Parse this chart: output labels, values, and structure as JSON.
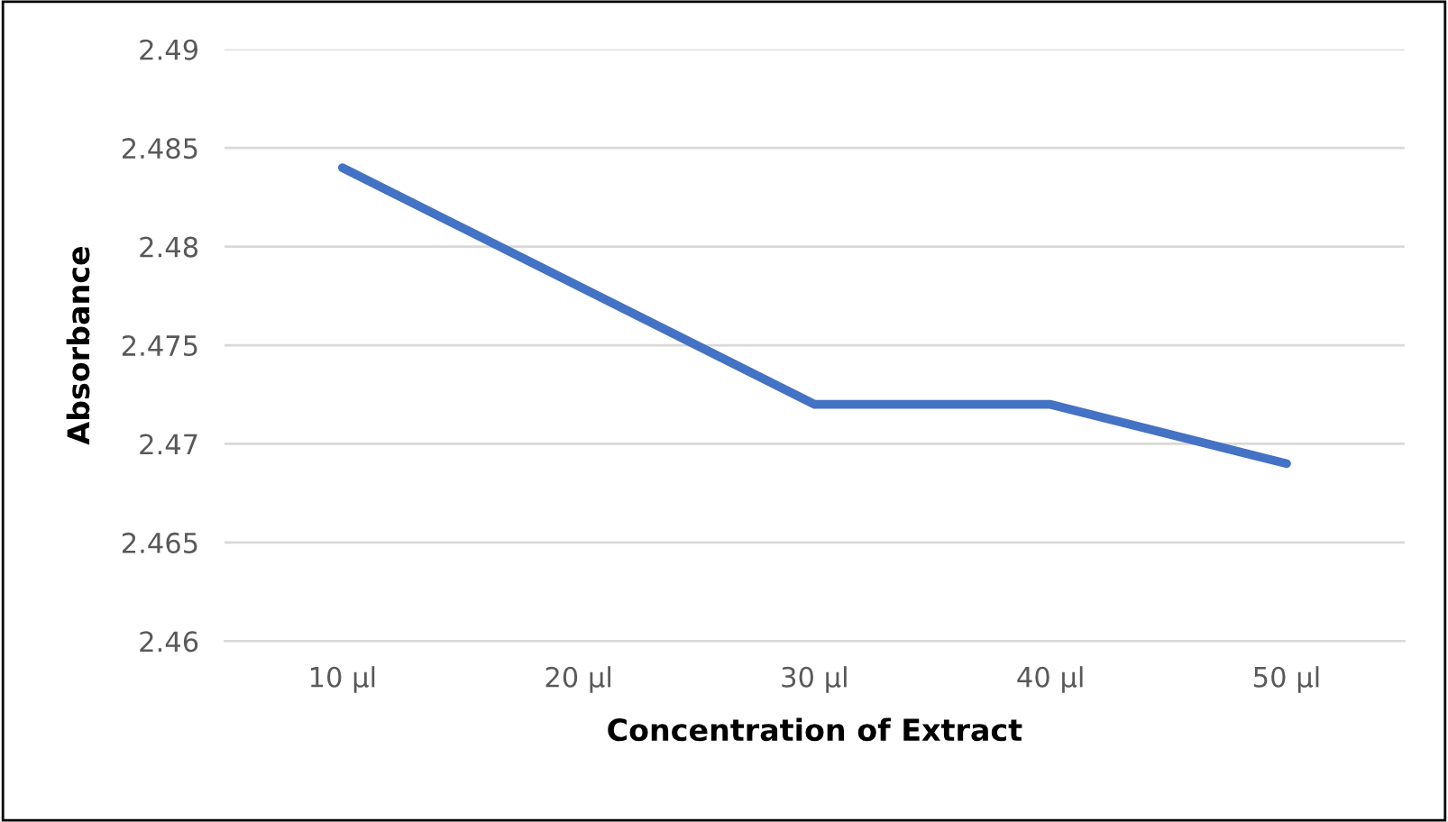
{
  "chart_data": {
    "type": "line",
    "xlabel": "Concentration of Extract",
    "ylabel": "Absorbance",
    "categories": [
      "10 µl",
      "20 µl",
      "30 µl",
      "40 µl",
      "50 µl"
    ],
    "series": [
      {
        "color": "#4472c4",
        "values": [
          2.484,
          2.478,
          2.472,
          2.472,
          2.469
        ]
      }
    ],
    "ylim": [
      2.46,
      2.49
    ],
    "yticks": [
      2.46,
      2.465,
      2.47,
      2.475,
      2.48,
      2.485,
      2.49
    ],
    "grid": "y",
    "marker": "none",
    "line_style": "solid"
  }
}
